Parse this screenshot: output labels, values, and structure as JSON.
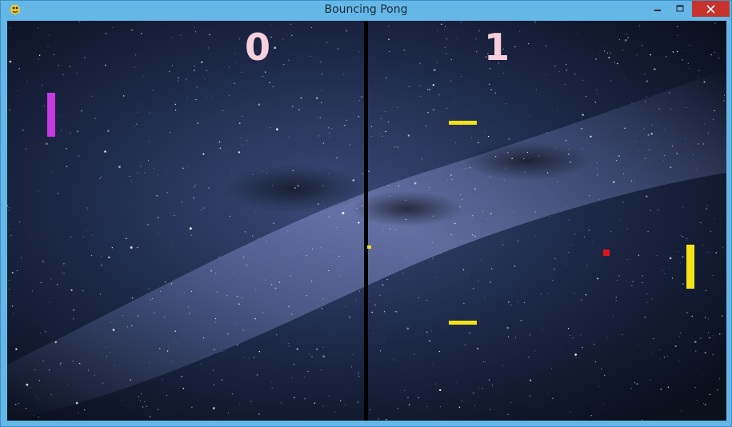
{
  "window": {
    "title": "Bouncing Pong"
  },
  "controls": {
    "minimize_icon": "minimize-icon",
    "maximize_icon": "maximize-icon",
    "close_icon": "close-icon"
  },
  "game": {
    "score_left": "0",
    "score_right": "1",
    "score_color": "#f8cfdc",
    "left_paddle_color": "#c63ae0",
    "right_paddle_color": "#f2e318",
    "bumper_color": "#f2e318",
    "ball_color": "#e01616",
    "net_color": "#000000",
    "net_marker_color": "#f2e318",
    "background": "starry-night-milky-way"
  }
}
